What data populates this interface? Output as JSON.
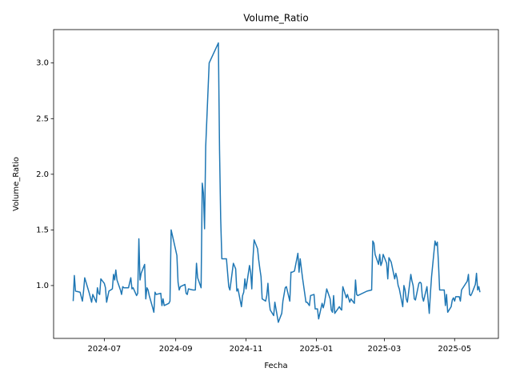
{
  "chart_data": {
    "type": "line",
    "title": "Volume_Ratio",
    "x_label": "Fecha",
    "y_label": "Volume_Ratio",
    "x": [
      "2024-06-04",
      "2024-06-05",
      "2024-06-06",
      "2024-06-10",
      "2024-06-12",
      "2024-06-13",
      "2024-06-14",
      "2024-06-18",
      "2024-06-20",
      "2024-06-21",
      "2024-06-24",
      "2024-06-25",
      "2024-06-26",
      "2024-06-27",
      "2024-06-28",
      "2024-07-01",
      "2024-07-02",
      "2024-07-03",
      "2024-07-05",
      "2024-07-08",
      "2024-07-09",
      "2024-07-10",
      "2024-07-11",
      "2024-07-12",
      "2024-07-15",
      "2024-07-16",
      "2024-07-17",
      "2024-07-18",
      "2024-07-22",
      "2024-07-24",
      "2024-07-25",
      "2024-07-26",
      "2024-07-29",
      "2024-07-30",
      "2024-07-31",
      "2024-08-01",
      "2024-08-02",
      "2024-08-05",
      "2024-08-06",
      "2024-08-07",
      "2024-08-08",
      "2024-08-09",
      "2024-08-12",
      "2024-08-13",
      "2024-08-14",
      "2024-08-15",
      "2024-08-19",
      "2024-08-20",
      "2024-08-21",
      "2024-08-22",
      "2024-08-26",
      "2024-08-27",
      "2024-08-28",
      "2024-08-30",
      "2024-09-02",
      "2024-09-03",
      "2024-09-04",
      "2024-09-05",
      "2024-09-09",
      "2024-09-10",
      "2024-09-11",
      "2024-09-12",
      "2024-09-16",
      "2024-09-18",
      "2024-09-19",
      "2024-09-20",
      "2024-09-23",
      "2024-09-24",
      "2024-09-25",
      "2024-09-26",
      "2024-09-27",
      "2024-09-30",
      "2024-10-08",
      "2024-10-09",
      "2024-10-10",
      "2024-10-11",
      "2024-10-15",
      "2024-10-17",
      "2024-10-18",
      "2024-10-21",
      "2024-10-23",
      "2024-10-24",
      "2024-10-25",
      "2024-10-28",
      "2024-10-29",
      "2024-10-30",
      "2024-10-31",
      "2024-11-01",
      "2024-11-04",
      "2024-11-05",
      "2024-11-06",
      "2024-11-07",
      "2024-11-08",
      "2024-11-11",
      "2024-11-12",
      "2024-11-13",
      "2024-11-14",
      "2024-11-15",
      "2024-11-18",
      "2024-11-19",
      "2024-11-20",
      "2024-11-21",
      "2024-11-22",
      "2024-11-25",
      "2024-11-26",
      "2024-11-27",
      "2024-11-29",
      "2024-12-02",
      "2024-12-03",
      "2024-12-05",
      "2024-12-06",
      "2024-12-09",
      "2024-12-10",
      "2024-12-11",
      "2024-12-13",
      "2024-12-16",
      "2024-12-17",
      "2024-12-18",
      "2024-12-20",
      "2024-12-23",
      "2024-12-24",
      "2024-12-26",
      "2024-12-27",
      "2024-12-30",
      "2024-12-31",
      "2025-01-02",
      "2025-01-03",
      "2025-01-06",
      "2025-01-07",
      "2025-01-08",
      "2025-01-10",
      "2025-01-13",
      "2025-01-14",
      "2025-01-15",
      "2025-01-16",
      "2025-01-17",
      "2025-01-21",
      "2025-01-22",
      "2025-01-23",
      "2025-01-24",
      "2025-01-27",
      "2025-01-28",
      "2025-01-30",
      "2025-01-31",
      "2025-02-03",
      "2025-02-04",
      "2025-02-05",
      "2025-02-06",
      "2025-02-14",
      "2025-02-18",
      "2025-02-19",
      "2025-02-20",
      "2025-02-21",
      "2025-02-24",
      "2025-02-25",
      "2025-02-26",
      "2025-02-27",
      "2025-02-28",
      "2025-03-03",
      "2025-03-04",
      "2025-03-05",
      "2025-03-07",
      "2025-03-10",
      "2025-03-11",
      "2025-03-12",
      "2025-03-13",
      "2025-03-14",
      "2025-03-17",
      "2025-03-18",
      "2025-03-19",
      "2025-03-20",
      "2025-03-21",
      "2025-03-24",
      "2025-03-25",
      "2025-03-26",
      "2025-03-27",
      "2025-03-28",
      "2025-03-31",
      "2025-04-01",
      "2025-04-02",
      "2025-04-03",
      "2025-04-04",
      "2025-04-07",
      "2025-04-08",
      "2025-04-09",
      "2025-04-10",
      "2025-04-11",
      "2025-04-14",
      "2025-04-15",
      "2025-04-16",
      "2025-04-17",
      "2025-04-18",
      "2025-04-21",
      "2025-04-22",
      "2025-04-23",
      "2025-04-24",
      "2025-04-25",
      "2025-04-28",
      "2025-04-29",
      "2025-04-30",
      "2025-05-01",
      "2025-05-02",
      "2025-05-05",
      "2025-05-06",
      "2025-05-07",
      "2025-05-12",
      "2025-05-13",
      "2025-05-14",
      "2025-05-15",
      "2025-05-16",
      "2025-05-19",
      "2025-05-20",
      "2025-05-21",
      "2025-05-22",
      "2025-05-23"
    ],
    "series": [
      {
        "name": "Volume_Ratio",
        "color": "#1f77b4",
        "values": [
          0.86,
          1.09,
          0.95,
          0.94,
          0.86,
          0.95,
          1.07,
          0.93,
          0.85,
          0.92,
          0.85,
          0.98,
          0.93,
          0.92,
          1.06,
          1.02,
          0.98,
          0.85,
          0.95,
          0.97,
          1.1,
          1.05,
          1.14,
          1.05,
          0.96,
          0.92,
          0.99,
          0.98,
          0.98,
          1.07,
          0.97,
          0.98,
          0.91,
          0.93,
          1.42,
          1.05,
          1.11,
          1.19,
          0.88,
          0.98,
          0.96,
          0.91,
          0.8,
          0.76,
          0.94,
          0.92,
          0.93,
          0.82,
          0.88,
          0.82,
          0.84,
          0.86,
          1.5,
          1.41,
          1.27,
          1.03,
          0.96,
          0.99,
          1.01,
          0.93,
          0.92,
          0.97,
          0.96,
          0.96,
          1.2,
          1.07,
          0.98,
          1.92,
          1.83,
          1.51,
          2.25,
          3.0,
          3.18,
          2.22,
          1.6,
          1.24,
          1.24,
          0.99,
          0.96,
          1.2,
          1.15,
          0.95,
          0.97,
          0.81,
          0.91,
          0.94,
          1.06,
          0.97,
          1.18,
          1.12,
          0.97,
          1.24,
          1.41,
          1.33,
          1.23,
          1.15,
          1.08,
          0.88,
          0.86,
          0.91,
          1.02,
          0.86,
          0.78,
          0.73,
          0.85,
          0.79,
          0.67,
          0.75,
          0.86,
          0.98,
          0.99,
          0.86,
          1.12,
          1.12,
          1.13,
          1.29,
          1.12,
          1.24,
          1.07,
          0.85,
          0.85,
          0.82,
          0.91,
          0.92,
          0.79,
          0.79,
          0.7,
          0.84,
          0.8,
          0.84,
          0.97,
          0.88,
          0.78,
          0.76,
          0.91,
          0.75,
          0.81,
          0.79,
          0.78,
          0.99,
          0.89,
          0.92,
          0.85,
          0.88,
          0.84,
          1.05,
          0.92,
          0.91,
          0.95,
          0.96,
          1.4,
          1.38,
          1.28,
          1.19,
          1.28,
          1.18,
          1.21,
          1.28,
          1.2,
          1.06,
          1.25,
          1.21,
          1.06,
          1.11,
          1.07,
          1.0,
          0.97,
          0.81,
          1.0,
          0.96,
          0.88,
          0.85,
          1.1,
          1.04,
          1.0,
          0.88,
          0.87,
          1.02,
          1.03,
          1.02,
          0.9,
          0.86,
          0.99,
          0.87,
          0.75,
          0.93,
          1.08,
          1.4,
          1.36,
          1.39,
          1.2,
          0.96,
          0.96,
          0.96,
          0.82,
          0.92,
          0.76,
          0.81,
          0.87,
          0.89,
          0.86,
          0.9,
          0.9,
          0.86,
          0.96,
          1.04,
          1.1,
          0.92,
          0.91,
          0.93,
          1.01,
          1.11,
          0.96,
          0.99,
          0.94
        ]
      }
    ],
    "xlim": [
      "2024-05-18",
      "2025-06-08"
    ],
    "xticks": [
      {
        "value": "2024-07-01",
        "label": "2024-07"
      },
      {
        "value": "2024-09-01",
        "label": "2024-09"
      },
      {
        "value": "2024-11-01",
        "label": "2024-11"
      },
      {
        "value": "2025-01-01",
        "label": "2025-01"
      },
      {
        "value": "2025-03-01",
        "label": "2025-03"
      },
      {
        "value": "2025-05-01",
        "label": "2025-05"
      }
    ],
    "ylim": [
      0.525,
      3.3
    ],
    "yticks": [
      {
        "value": 1.0,
        "label": "1.0"
      },
      {
        "value": 1.5,
        "label": "1.5"
      },
      {
        "value": 2.0,
        "label": "2.0"
      },
      {
        "value": 2.5,
        "label": "2.5"
      },
      {
        "value": 3.0,
        "label": "3.0"
      }
    ],
    "grid": false
  }
}
